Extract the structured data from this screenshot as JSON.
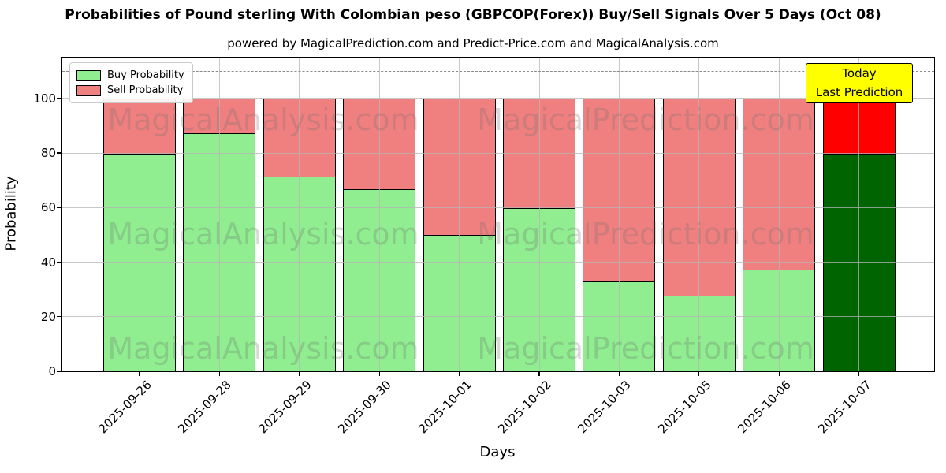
{
  "title": "Probabilities of Pound sterling With Colombian peso (GBPCOP(Forex)) Buy/Sell Signals Over 5 Days (Oct 08)",
  "subtitle": "powered by MagicalPrediction.com and Predict-Price.com and MagicalAnalysis.com",
  "watermark": {
    "left": "MagicalAnalysis.com",
    "right": "MagicalPrediction.com"
  },
  "annotation": {
    "line1": "Today",
    "line2": "Last Prediction",
    "bg_color": "#ffff00"
  },
  "legend": {
    "items": [
      {
        "label": "Buy Probability",
        "color": "#90ee90"
      },
      {
        "label": "Sell Probability",
        "color": "#f08080"
      }
    ]
  },
  "chart_data": {
    "type": "bar",
    "stacked": true,
    "title": "Probabilities of Pound sterling With Colombian peso (GBPCOP(Forex)) Buy/Sell Signals Over 5 Days (Oct 08)",
    "xlabel": "Days",
    "ylabel": "Probability",
    "categories": [
      "2025-09-26",
      "2025-09-28",
      "2025-09-29",
      "2025-09-30",
      "2025-10-01",
      "2025-10-02",
      "2025-10-03",
      "2025-10-05",
      "2025-10-06",
      "2025-10-07"
    ],
    "series": [
      {
        "name": "Buy Probability",
        "color": "#90ee90",
        "values": [
          80,
          87.5,
          71.5,
          67,
          50,
          60,
          33,
          28,
          37.5,
          80
        ]
      },
      {
        "name": "Sell Probability",
        "color": "#f08080",
        "values": [
          20,
          12.5,
          28.5,
          33,
          50,
          40,
          67,
          72,
          62.5,
          20
        ]
      }
    ],
    "last_bar_colors": {
      "buy": "#006400",
      "sell": "#ff0000"
    },
    "yticks": [
      0,
      20,
      40,
      60,
      80,
      100
    ],
    "ylim": [
      0,
      115
    ],
    "dashed_line_y": 110,
    "grid": true,
    "legend_position": "upper left"
  }
}
